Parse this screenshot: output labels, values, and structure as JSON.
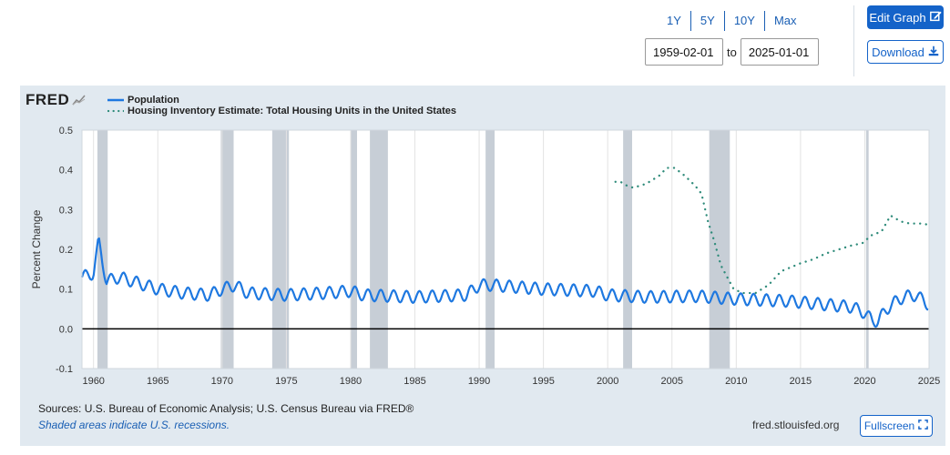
{
  "controls": {
    "ranges": [
      "1Y",
      "5Y",
      "10Y",
      "Max"
    ],
    "start_date": "1959-02-01",
    "to_label": "to",
    "end_date": "2025-01-01",
    "edit_label": "Edit Graph",
    "download_label": "Download",
    "fullscreen_label": "Fullscreen"
  },
  "footer": {
    "sources": "Sources: U.S. Bureau of Economic Analysis; U.S. Census Bureau via FRED®",
    "shaded_note": "Shaded areas indicate U.S. recessions.",
    "site": "fred.stlouisfed.org"
  },
  "colors": {
    "population": "#1e78e0",
    "housing": "#2e8b7a",
    "panel": "#e1e9f0",
    "recession": "#c7ced6"
  },
  "chart_data": {
    "type": "line",
    "logo": "FRED",
    "ylabel": "Percent Change",
    "ylim": [
      -0.1,
      0.5
    ],
    "yticks": [
      -0.1,
      0.0,
      0.1,
      0.2,
      0.3,
      0.4,
      0.5
    ],
    "xlim": [
      1959.1,
      2025.0
    ],
    "xticks": [
      1960,
      1965,
      1970,
      1975,
      1980,
      1985,
      1990,
      1995,
      2000,
      2005,
      2010,
      2015,
      2020,
      2025
    ],
    "grid": "vertical",
    "legend": "top-left",
    "recessions": [
      [
        1960.3,
        1961.1
      ],
      [
        1969.9,
        1970.9
      ],
      [
        1973.9,
        1975.2
      ],
      [
        1980.0,
        1980.5
      ],
      [
        1981.5,
        1982.9
      ],
      [
        1990.5,
        1991.2
      ],
      [
        2001.2,
        2001.9
      ],
      [
        2007.9,
        2009.5
      ],
      [
        2020.1,
        2020.3
      ]
    ],
    "series": [
      {
        "name": "Population",
        "style": "solid",
        "baseline_points": [
          [
            1959.1,
            0.13
          ],
          [
            1960.0,
            0.14
          ],
          [
            1960.4,
            0.22
          ],
          [
            1961.0,
            0.12
          ],
          [
            1962.0,
            0.13
          ],
          [
            1965.0,
            0.1
          ],
          [
            1967.0,
            0.09
          ],
          [
            1969.0,
            0.085
          ],
          [
            1970.0,
            0.1
          ],
          [
            1971.0,
            0.11
          ],
          [
            1972.0,
            0.09
          ],
          [
            1975.0,
            0.085
          ],
          [
            1978.0,
            0.09
          ],
          [
            1980.0,
            0.095
          ],
          [
            1981.0,
            0.085
          ],
          [
            1985.0,
            0.08
          ],
          [
            1989.0,
            0.085
          ],
          [
            1990.0,
            0.11
          ],
          [
            1991.0,
            0.11
          ],
          [
            1995.0,
            0.1
          ],
          [
            1999.0,
            0.095
          ],
          [
            2000.0,
            0.085
          ],
          [
            2003.0,
            0.08
          ],
          [
            2007.0,
            0.082
          ],
          [
            2010.0,
            0.075
          ],
          [
            2014.0,
            0.07
          ],
          [
            2019.0,
            0.055
          ],
          [
            2020.0,
            0.04
          ],
          [
            2020.6,
            0.02
          ],
          [
            2021.0,
            0.02
          ],
          [
            2022.0,
            0.06
          ],
          [
            2023.0,
            0.08
          ],
          [
            2024.0,
            0.085
          ],
          [
            2025.0,
            0.06
          ]
        ],
        "seasonal_amplitude": 0.015
      },
      {
        "name": "Housing Inventory Estimate: Total Housing Units in the United States",
        "style": "dotted",
        "points": [
          [
            2000.6,
            0.37
          ],
          [
            2001.0,
            0.37
          ],
          [
            2001.5,
            0.36
          ],
          [
            2002.0,
            0.355
          ],
          [
            2003.0,
            0.365
          ],
          [
            2004.0,
            0.385
          ],
          [
            2004.6,
            0.405
          ],
          [
            2005.2,
            0.405
          ],
          [
            2006.0,
            0.385
          ],
          [
            2006.8,
            0.36
          ],
          [
            2007.3,
            0.34
          ],
          [
            2007.8,
            0.27
          ],
          [
            2008.3,
            0.22
          ],
          [
            2008.8,
            0.16
          ],
          [
            2009.3,
            0.13
          ],
          [
            2009.8,
            0.1
          ],
          [
            2010.5,
            0.09
          ],
          [
            2011.5,
            0.09
          ],
          [
            2012.5,
            0.11
          ],
          [
            2013.5,
            0.145
          ],
          [
            2015.0,
            0.165
          ],
          [
            2016.0,
            0.175
          ],
          [
            2017.0,
            0.19
          ],
          [
            2018.0,
            0.2
          ],
          [
            2019.0,
            0.21
          ],
          [
            2019.8,
            0.215
          ],
          [
            2020.5,
            0.235
          ],
          [
            2021.3,
            0.245
          ],
          [
            2022.0,
            0.285
          ],
          [
            2022.8,
            0.27
          ],
          [
            2023.5,
            0.265
          ],
          [
            2024.3,
            0.265
          ],
          [
            2025.0,
            0.262
          ]
        ]
      }
    ]
  }
}
